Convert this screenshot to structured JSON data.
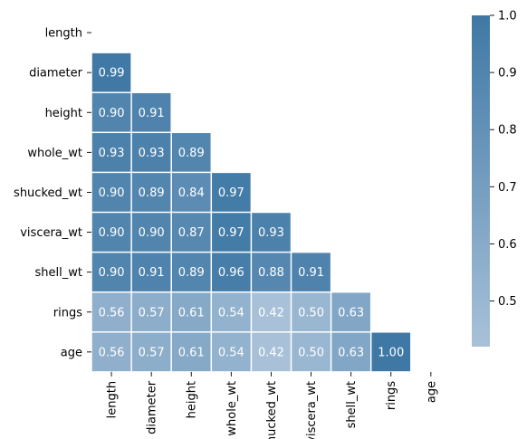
{
  "chart_data": {
    "type": "heatmap",
    "title": "",
    "xlabel": "",
    "ylabel": "",
    "labels": [
      "length",
      "diameter",
      "height",
      "whole_wt",
      "shucked_wt",
      "viscera_wt",
      "shell_wt",
      "rings",
      "age"
    ],
    "mask": "upper-triangle-including-diagonal",
    "values": [
      [
        null,
        null,
        null,
        null,
        null,
        null,
        null,
        null,
        null
      ],
      [
        0.99,
        null,
        null,
        null,
        null,
        null,
        null,
        null,
        null
      ],
      [
        0.9,
        0.91,
        null,
        null,
        null,
        null,
        null,
        null,
        null
      ],
      [
        0.93,
        0.93,
        0.89,
        null,
        null,
        null,
        null,
        null,
        null
      ],
      [
        0.9,
        0.89,
        0.84,
        0.97,
        null,
        null,
        null,
        null,
        null
      ],
      [
        0.9,
        0.9,
        0.87,
        0.97,
        0.93,
        null,
        null,
        null,
        null
      ],
      [
        0.9,
        0.91,
        0.89,
        0.96,
        0.88,
        0.91,
        null,
        null,
        null
      ],
      [
        0.56,
        0.57,
        0.61,
        0.54,
        0.42,
        0.5,
        0.63,
        null,
        null
      ],
      [
        0.56,
        0.57,
        0.61,
        0.54,
        0.42,
        0.5,
        0.63,
        1.0,
        null
      ]
    ],
    "value_format": "0.00",
    "colorbar": {
      "range": [
        0.42,
        1.0
      ],
      "ticks": [
        "1.0",
        "0.9",
        "0.8",
        "0.7",
        "0.6",
        "0.5"
      ],
      "tick_values": [
        1.0,
        0.9,
        0.8,
        0.7,
        0.6,
        0.5
      ],
      "color_low": "#a8c1d8",
      "color_high": "#3f78a5"
    },
    "text_color": "#ffffff",
    "grid_line_color": "#ffffff",
    "legend_position": "right"
  }
}
